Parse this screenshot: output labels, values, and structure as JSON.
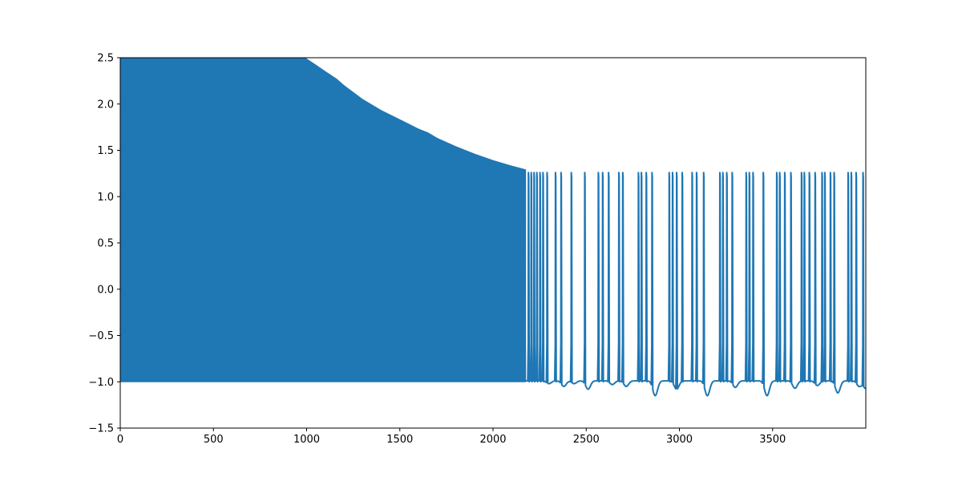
{
  "chart_data": {
    "type": "line",
    "title": "",
    "xlabel": "",
    "ylabel": "",
    "xlim": [
      0,
      4000
    ],
    "ylim": [
      -1.5,
      2.5
    ],
    "x_ticks": [
      0,
      500,
      1000,
      1500,
      2000,
      2500,
      3000,
      3500
    ],
    "x_tick_labels": [
      "0",
      "500",
      "1000",
      "1500",
      "2000",
      "2500",
      "3000",
      "3500"
    ],
    "y_ticks": [
      -1.5,
      -1.0,
      -0.5,
      0.0,
      0.5,
      1.0,
      1.5,
      2.0,
      2.5
    ],
    "y_tick_labels": [
      "−1.5",
      "−1.0",
      "−0.5",
      "0.0",
      "0.5",
      "1.0",
      "1.5",
      "2.0",
      "2.5"
    ],
    "grid": false,
    "legend": false,
    "series": [
      {
        "color": "#1f77b4",
        "dense_band": {
          "x_range": [
            0,
            2175
          ],
          "lower": -1.0,
          "upper_envelope": [
            [
              0,
              2.5
            ],
            [
              990,
              2.5
            ],
            [
              1050,
              2.42
            ],
            [
              1100,
              2.35
            ],
            [
              1160,
              2.27
            ],
            [
              1200,
              2.2
            ],
            [
              1300,
              2.05
            ],
            [
              1400,
              1.93
            ],
            [
              1500,
              1.83
            ],
            [
              1600,
              1.73
            ],
            [
              1650,
              1.69
            ],
            [
              1700,
              1.63
            ],
            [
              1800,
              1.54
            ],
            [
              1900,
              1.46
            ],
            [
              2000,
              1.39
            ],
            [
              2100,
              1.33
            ],
            [
              2175,
              1.29
            ]
          ]
        },
        "spike_peak": 1.26,
        "spike_base": -0.99,
        "spike_times": [
          2190,
          2205,
          2220,
          2235,
          2252,
          2268,
          2290,
          2335,
          2365,
          2420,
          2492,
          2565,
          2588,
          2620,
          2675,
          2696,
          2780,
          2796,
          2822,
          2853,
          2945,
          2963,
          2985,
          3015,
          3068,
          3092,
          3130,
          3217,
          3233,
          3254,
          3283,
          3358,
          3375,
          3395,
          3450,
          3522,
          3538,
          3565,
          3598,
          3655,
          3670,
          3697,
          3728,
          3765,
          3780,
          3810,
          3830,
          3905,
          3922,
          3948,
          3985
        ],
        "troughs": [
          [
            2300,
            -1.02
          ],
          [
            2380,
            -1.05
          ],
          [
            2435,
            -1.02
          ],
          [
            2510,
            -1.08
          ],
          [
            2640,
            -1.03
          ],
          [
            2715,
            -1.05
          ],
          [
            2870,
            -1.15
          ],
          [
            2985,
            -1.08
          ],
          [
            3150,
            -1.15
          ],
          [
            3300,
            -1.06
          ],
          [
            3470,
            -1.15
          ],
          [
            3620,
            -1.07
          ],
          [
            3740,
            -1.04
          ],
          [
            3850,
            -1.12
          ],
          [
            3965,
            -1.05
          ],
          [
            4000,
            -1.07
          ]
        ]
      }
    ]
  }
}
